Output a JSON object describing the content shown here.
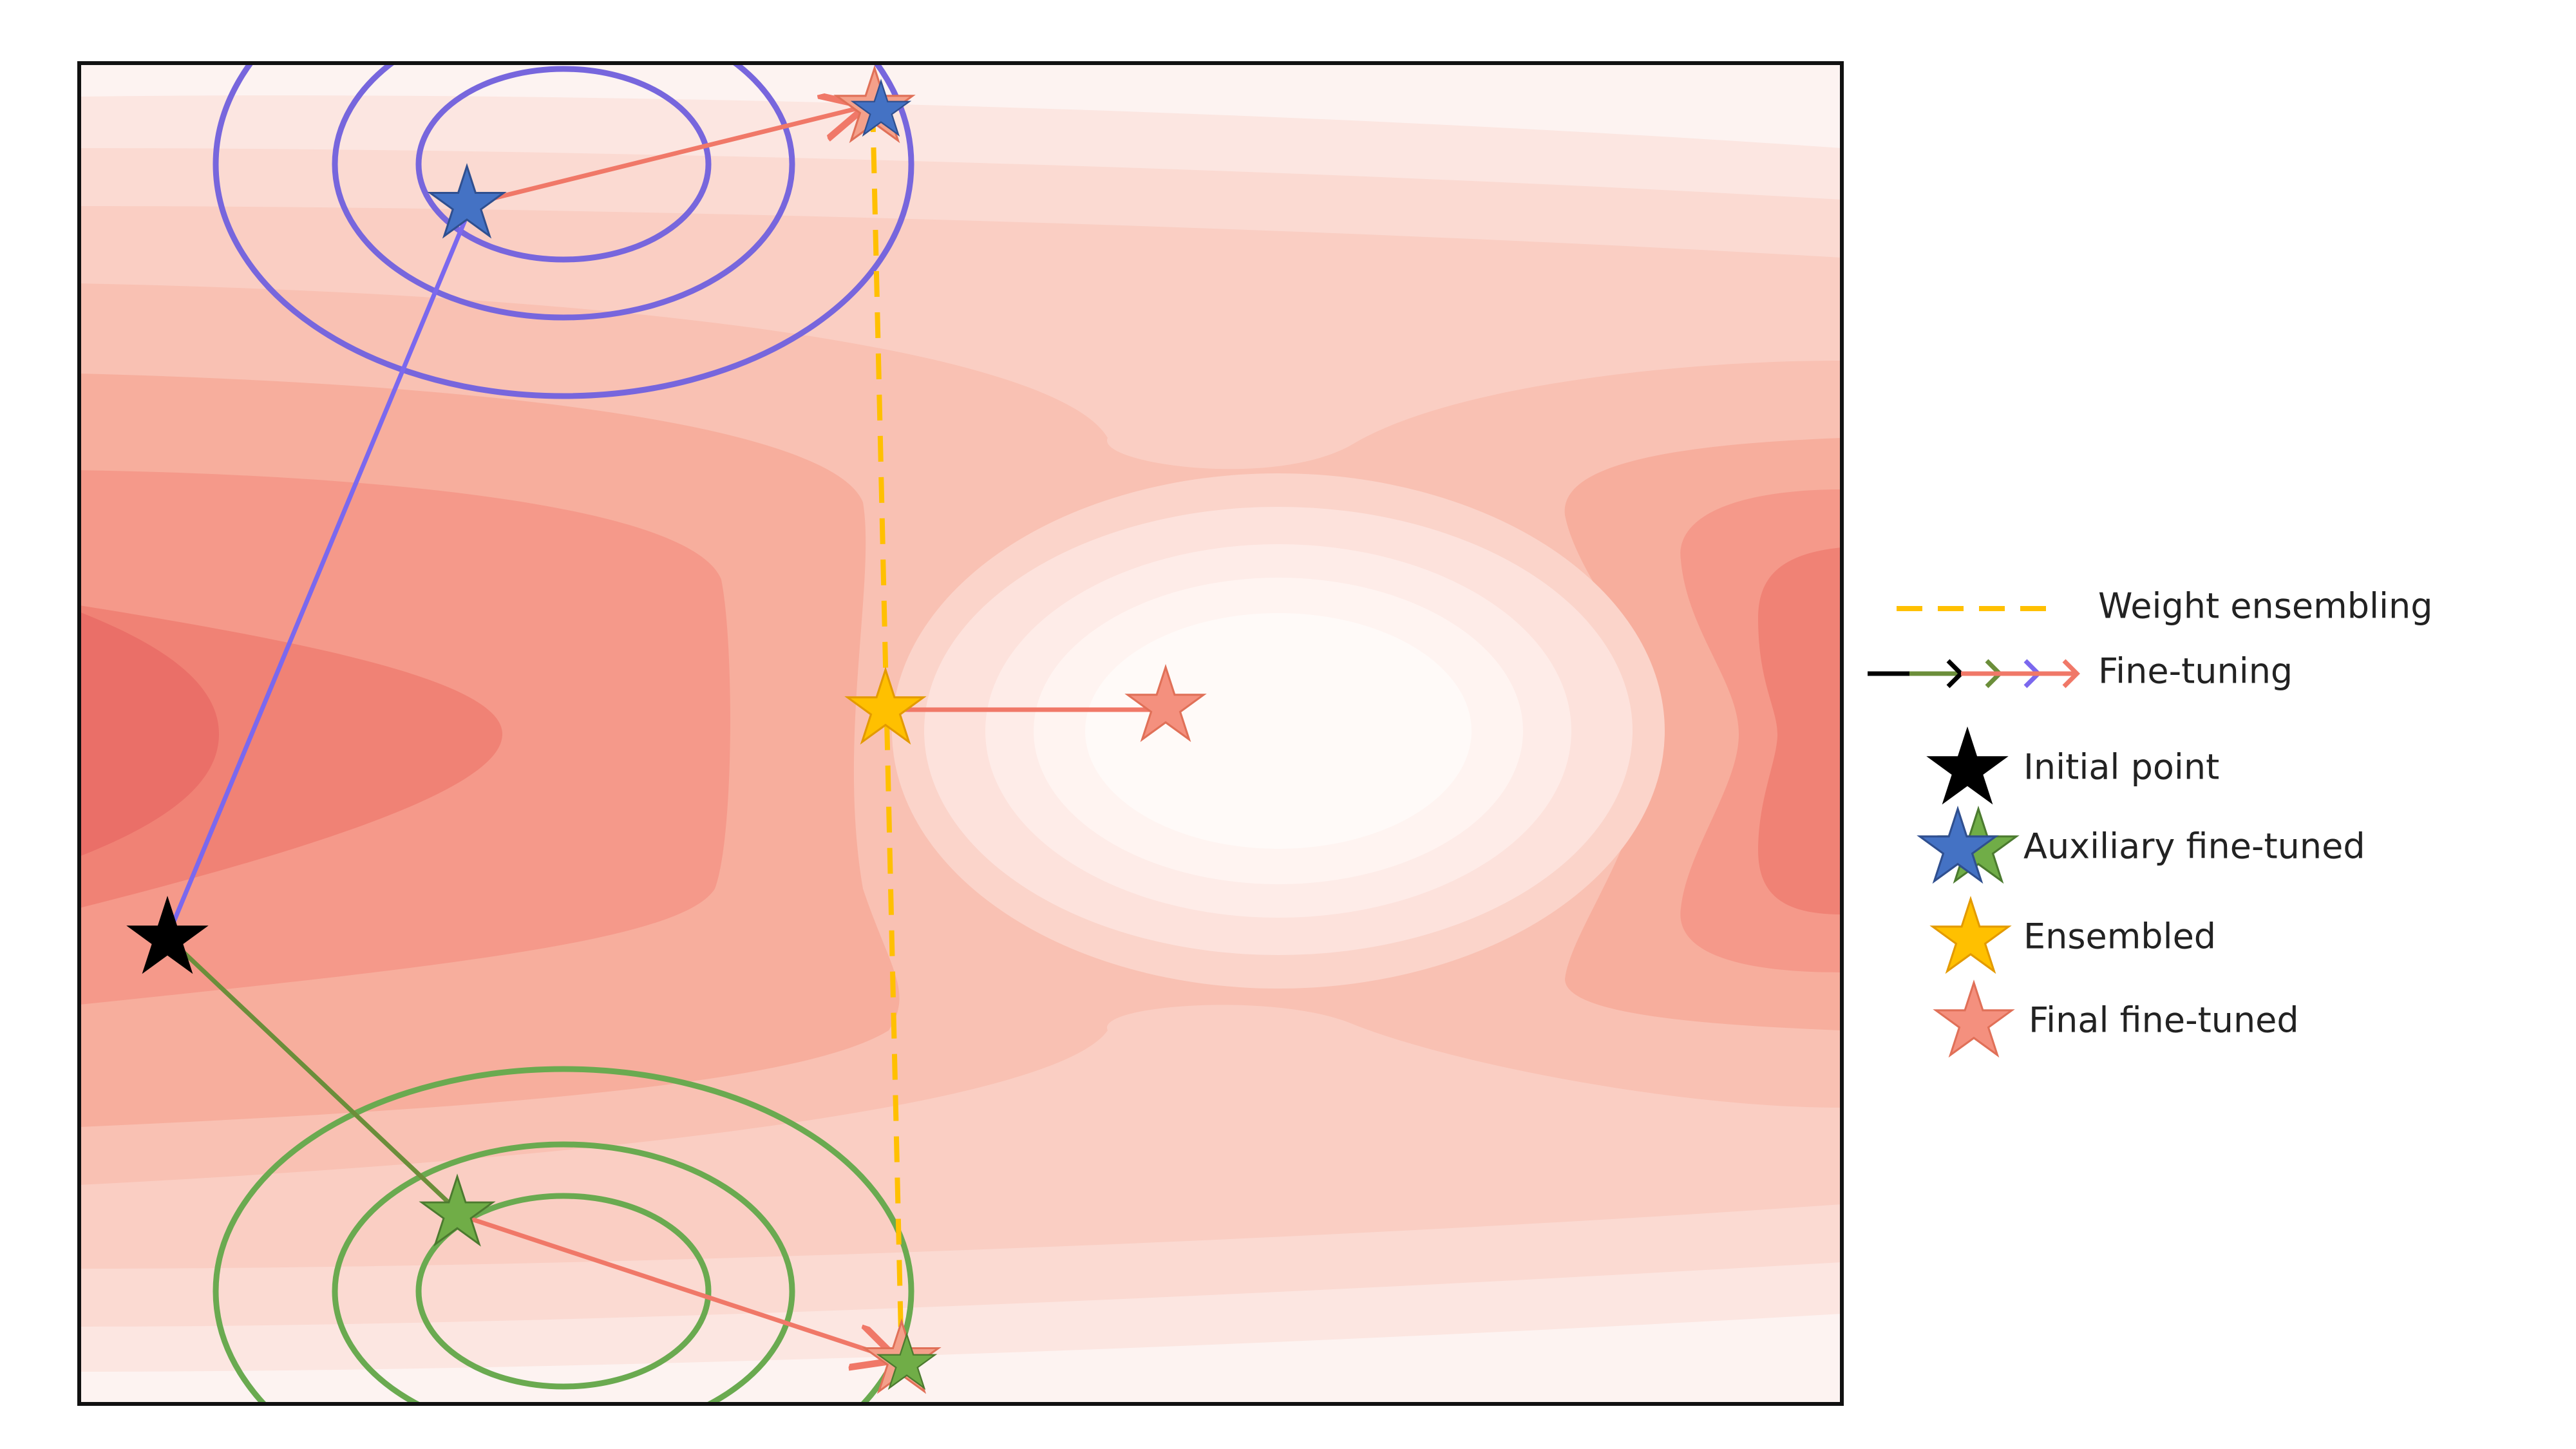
{
  "legend": {
    "weight_ensembling": "Weight ensembling",
    "fine_tuning": "Fine-tuning",
    "initial_point": "Initial point",
    "auxiliary_fine_tuned": "Auxiliary fine-tuned",
    "ensembled": "Ensembled",
    "final_fine_tuned": "Final fine-tuned"
  },
  "colors": {
    "initial": "#000000",
    "auxiliary_blue": "#4472C4",
    "auxiliary_green": "#70AD47",
    "path_blue": "#7B68EE",
    "path_green": "#6B8E3A",
    "ensembled": "#FFC000",
    "ensemble_line": "#FFC000",
    "final": "#F08070",
    "contour_purple": "#7766DD",
    "contour_green": "#6AAA50"
  }
}
